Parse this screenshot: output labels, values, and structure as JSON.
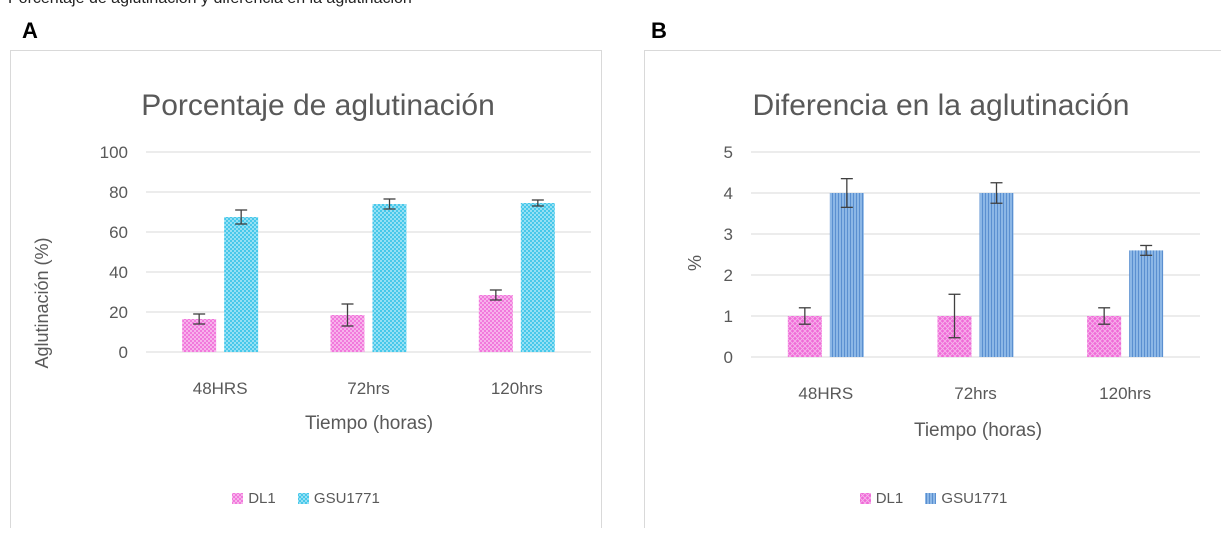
{
  "header": {
    "clipped_text": "Porcentaje de aglutinación y diferencia en la aglutinación"
  },
  "chart_data": [
    {
      "type": "bar",
      "panel_label": "A",
      "title": "Porcentaje de aglutinación",
      "xlabel": "Tiempo (horas)",
      "ylabel": "Aglutinación (%)",
      "ylim": [
        0,
        100
      ],
      "yticks": [
        0,
        20,
        40,
        60,
        80,
        100
      ],
      "grid": true,
      "legend_position": "bottom",
      "categories": [
        "48HRS",
        "72hrs",
        "120hrs"
      ],
      "series": [
        {
          "name": "DL1",
          "values": [
            16.5,
            18.5,
            28.5
          ],
          "errors": [
            2.5,
            5.5,
            2.5
          ],
          "color": "#f06ad8",
          "pattern": "pat-dl1-a"
        },
        {
          "name": "GSU1771",
          "values": [
            67.5,
            74,
            74.5
          ],
          "errors": [
            3.5,
            2.5,
            1.5
          ],
          "color": "#33c2e8",
          "pattern": "pat-gsu-a"
        }
      ]
    },
    {
      "type": "bar",
      "panel_label": "B",
      "title": "Diferencia en la aglutinación",
      "xlabel": "Tiempo (horas)",
      "ylabel": "%",
      "ylim": [
        0,
        5
      ],
      "yticks": [
        0,
        1,
        2,
        3,
        4,
        5
      ],
      "grid": true,
      "legend_position": "bottom",
      "categories": [
        "48HRS",
        "72hrs",
        "120hrs"
      ],
      "series": [
        {
          "name": "DL1",
          "values": [
            1,
            1,
            1
          ],
          "errors": [
            0.2,
            0.53,
            0.2
          ],
          "color": "#f06ad8",
          "pattern": "pat-dl1-b"
        },
        {
          "name": "GSU1771",
          "values": [
            4,
            4,
            2.6
          ],
          "errors": [
            0.35,
            0.25,
            0.12
          ],
          "color": "#6fa3db",
          "pattern": "pat-gsu-b"
        }
      ]
    }
  ]
}
